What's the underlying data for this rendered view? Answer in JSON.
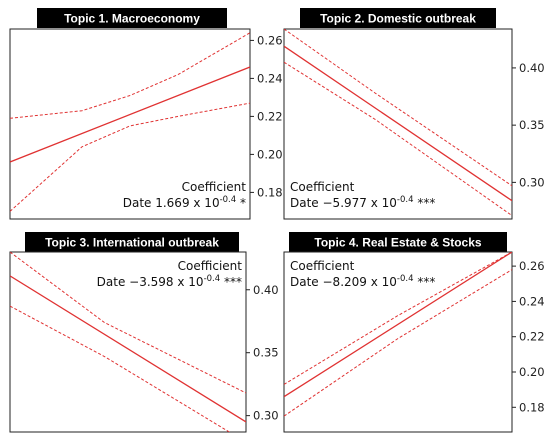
{
  "colors": {
    "line": "#e03232",
    "band": "#e03232",
    "frame": "#222222",
    "title_bg": "#000000",
    "title_fg": "#ffffff"
  },
  "chart_data": [
    {
      "type": "line",
      "title": "Topic 1. Macroeconomy",
      "x_range": [
        0,
        1
      ],
      "ylim": [
        0.166,
        0.266
      ],
      "yticks": [
        0.18,
        0.2,
        0.22,
        0.24,
        0.26
      ],
      "ytick_labels": [
        "0.18",
        "0.20",
        "0.22",
        "0.24",
        "0.26"
      ],
      "axis_side": "right",
      "fit": {
        "x": [
          0,
          1
        ],
        "y": [
          0.196,
          0.246
        ]
      },
      "ci_upper": {
        "x": [
          0,
          0.3,
          0.5,
          0.7,
          1
        ],
        "y": [
          0.219,
          0.223,
          0.231,
          0.242,
          0.264
        ]
      },
      "ci_lower": {
        "x": [
          0,
          0.3,
          0.5,
          0.7,
          1
        ],
        "y": [
          0.17,
          0.204,
          0.215,
          0.22,
          0.227
        ]
      },
      "annotation": {
        "heading": "Coefficient",
        "label": "Date",
        "value": "1.669 x 10",
        "exponent": "-0.4",
        "stars": "*",
        "position": "bottom-right"
      }
    },
    {
      "type": "line",
      "title": "Topic 2. Domestic outbreak",
      "x_range": [
        0,
        1
      ],
      "ylim": [
        0.268,
        0.434
      ],
      "yticks": [
        0.3,
        0.35,
        0.4
      ],
      "ytick_labels": [
        "0.30",
        "0.35",
        "0.40"
      ],
      "axis_side": "right",
      "fit": {
        "x": [
          0,
          1
        ],
        "y": [
          0.419,
          0.284
        ]
      },
      "ci_upper": {
        "x": [
          0,
          0.4,
          1
        ],
        "y": [
          0.434,
          0.378,
          0.297
        ]
      },
      "ci_lower": {
        "x": [
          0,
          0.4,
          1
        ],
        "y": [
          0.405,
          0.355,
          0.271
        ]
      },
      "annotation": {
        "heading": "Coefficient",
        "label": "Date",
        "value": "−5.977 x 10",
        "exponent": "-0.4",
        "stars": "***",
        "position": "bottom-left"
      }
    },
    {
      "type": "line",
      "title": "Topic 3. International outbreak",
      "x_range": [
        0,
        1
      ],
      "ylim": [
        0.287,
        0.43
      ],
      "yticks": [
        0.3,
        0.35,
        0.4
      ],
      "ytick_labels": [
        "0.30",
        "0.35",
        "0.40"
      ],
      "axis_side": "right",
      "fit": {
        "x": [
          0,
          1
        ],
        "y": [
          0.411,
          0.295
        ]
      },
      "ci_upper": {
        "x": [
          0,
          0.4,
          1
        ],
        "y": [
          0.43,
          0.374,
          0.318
        ]
      },
      "ci_lower": {
        "x": [
          0,
          0.4,
          1
        ],
        "y": [
          0.387,
          0.347,
          0.279
        ]
      },
      "annotation": {
        "heading": "Coefficient",
        "label": "Date",
        "value": "−3.598 x 10",
        "exponent": "-0.4",
        "stars": "***",
        "position": "top-right"
      }
    },
    {
      "type": "line",
      "title": "Topic 4. Real Estate & Stocks",
      "x_range": [
        0,
        1
      ],
      "ylim": [
        0.166,
        0.268
      ],
      "yticks": [
        0.18,
        0.2,
        0.22,
        0.24,
        0.26
      ],
      "ytick_labels": [
        "0.18",
        "0.20",
        "0.22",
        "0.24",
        "0.26"
      ],
      "axis_side": "right",
      "fit": {
        "x": [
          0,
          1
        ],
        "y": [
          0.186,
          0.268
        ]
      },
      "ci_upper": {
        "x": [
          0,
          0.5,
          1
        ],
        "y": [
          0.193,
          0.232,
          0.268
        ]
      },
      "ci_lower": {
        "x": [
          0,
          0.5,
          1
        ],
        "y": [
          0.175,
          0.219,
          0.258
        ]
      },
      "annotation": {
        "heading": "Coefficient",
        "label": "Date",
        "value": "−8.209 x 10",
        "exponent": "-0.4",
        "stars": "***",
        "position": "top-left"
      }
    }
  ]
}
